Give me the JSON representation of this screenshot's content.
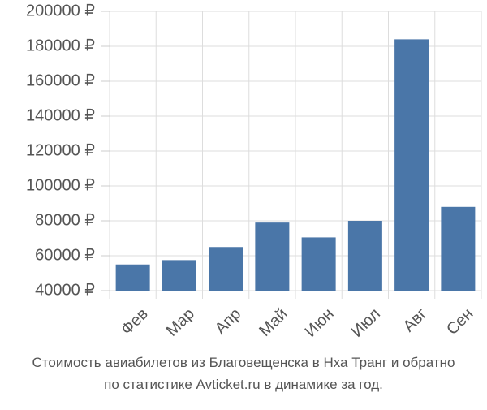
{
  "chart_data": {
    "type": "bar",
    "title": "Стоимость авиабилетов из Благовещенска в Нха Транг и обратно",
    "subtitle": "по статистике Avticket.ru в динамике за год.",
    "categories": [
      "Фев",
      "Мар",
      "Апр",
      "Май",
      "Июн",
      "Июл",
      "Авг",
      "Сен"
    ],
    "values": [
      55000,
      57500,
      65000,
      79000,
      70500,
      80000,
      184000,
      88000
    ],
    "color": "#4a76a8",
    "ylim": [
      40000,
      200000
    ],
    "yticks": [
      {
        "value": 40000,
        "label": "40000 ₽"
      },
      {
        "value": 60000,
        "label": "60000 ₽"
      },
      {
        "value": 80000,
        "label": "80000 ₽"
      },
      {
        "value": 100000,
        "label": "100000 ₽"
      },
      {
        "value": 120000,
        "label": "120000 ₽"
      },
      {
        "value": 140000,
        "label": "140000 ₽"
      },
      {
        "value": 160000,
        "label": "160000 ₽"
      },
      {
        "value": 180000,
        "label": "180000 ₽"
      },
      {
        "value": 200000,
        "label": "200000 ₽"
      }
    ],
    "grid": true
  }
}
